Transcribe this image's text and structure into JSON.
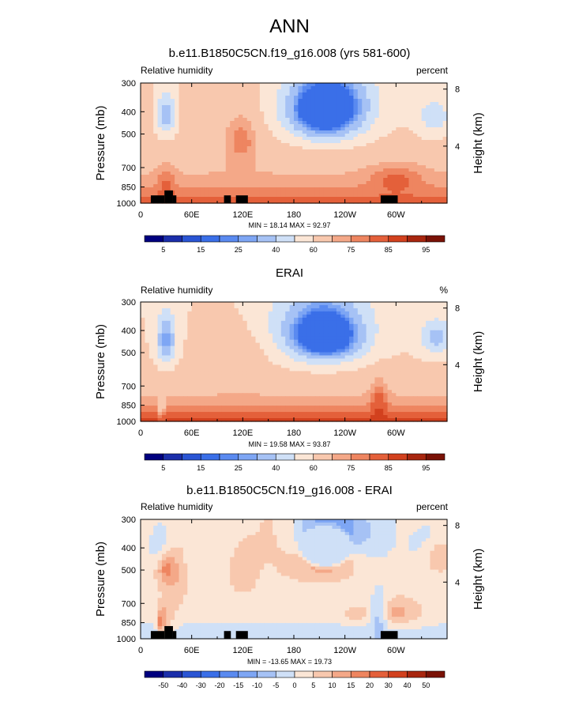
{
  "page_title": "ANN",
  "chart_data": [
    {
      "type": "heatmap",
      "title": "b.e11.B1850C5CN.f19_g16.008 (yrs 581-600)",
      "variable_label": "Relative humidity",
      "units_label": "percent",
      "xlabel": "",
      "ylabel": "Pressure (mb)",
      "y2label": "Height (km)",
      "x_ticks": [
        "0",
        "60E",
        "120E",
        "180",
        "120W",
        "60W"
      ],
      "x_tick_values": [
        0,
        60,
        120,
        180,
        240,
        300
      ],
      "xlim": [
        0,
        360
      ],
      "y_ticks": [
        "300",
        "400",
        "500",
        "700",
        "850",
        "1000"
      ],
      "y_tick_values": [
        300,
        400,
        500,
        700,
        850,
        1000
      ],
      "ylim": [
        1000,
        300
      ],
      "y_scale": "log",
      "y2_ticks": [
        "8",
        "4"
      ],
      "y2_tick_values": [
        8,
        4
      ],
      "min_max_text": "MIN =  18.14   MAX =  92.97",
      "colorbar_labels": [
        "5",
        "15",
        "25",
        "40",
        "60",
        "75",
        "85",
        "95"
      ],
      "levels": [
        5,
        10,
        15,
        20,
        25,
        30,
        40,
        50,
        60,
        70,
        75,
        80,
        85,
        90,
        95
      ],
      "colors": [
        "#00007f",
        "#1b2eaa",
        "#2a55d4",
        "#3a6fe8",
        "#5a8af0",
        "#7ea6f4",
        "#a6c2f5",
        "#cfe0f7",
        "#fbe6d6",
        "#f8c8ae",
        "#f4a888",
        "#ee8560",
        "#e4603a",
        "#d2411e",
        "#a8260f",
        "#7a1206"
      ],
      "terrain_blocks": [
        {
          "lon0": 12,
          "lon1": 28,
          "p_top": 925
        },
        {
          "lon0": 28,
          "lon1": 38,
          "p_top": 880
        },
        {
          "lon0": 38,
          "lon1": 42,
          "p_top": 925
        },
        {
          "lon0": 98,
          "lon1": 106,
          "p_top": 925
        },
        {
          "lon0": 112,
          "lon1": 126,
          "p_top": 925
        },
        {
          "lon0": 282,
          "lon1": 302,
          "p_top": 925
        }
      ]
    },
    {
      "type": "heatmap",
      "title": "ERAI",
      "variable_label": "Relative humidity",
      "units_label": "%",
      "xlabel": "",
      "ylabel": "Pressure (mb)",
      "y2label": "Height (km)",
      "x_ticks": [
        "0",
        "60E",
        "120E",
        "180",
        "120W",
        "60W"
      ],
      "x_tick_values": [
        0,
        60,
        120,
        180,
        240,
        300
      ],
      "xlim": [
        0,
        360
      ],
      "y_ticks": [
        "300",
        "400",
        "500",
        "700",
        "850",
        "1000"
      ],
      "y_tick_values": [
        300,
        400,
        500,
        700,
        850,
        1000
      ],
      "ylim": [
        1000,
        300
      ],
      "y_scale": "log",
      "y2_ticks": [
        "8",
        "4"
      ],
      "y2_tick_values": [
        8,
        4
      ],
      "min_max_text": "MIN =  19.58   MAX =  93.87",
      "colorbar_labels": [
        "5",
        "15",
        "25",
        "40",
        "60",
        "75",
        "85",
        "95"
      ],
      "levels": [
        5,
        10,
        15,
        20,
        25,
        30,
        40,
        50,
        60,
        70,
        75,
        80,
        85,
        90,
        95
      ],
      "colors": [
        "#00007f",
        "#1b2eaa",
        "#2a55d4",
        "#3a6fe8",
        "#5a8af0",
        "#7ea6f4",
        "#a6c2f5",
        "#cfe0f7",
        "#fbe6d6",
        "#f8c8ae",
        "#f4a888",
        "#ee8560",
        "#e4603a",
        "#d2411e",
        "#a8260f",
        "#7a1206"
      ],
      "terrain_blocks": []
    },
    {
      "type": "heatmap",
      "title": "b.e11.B1850C5CN.f19_g16.008 - ERAI",
      "variable_label": "Relative humidity",
      "units_label": "percent",
      "xlabel": "",
      "ylabel": "Pressure (mb)",
      "y2label": "Height (km)",
      "x_ticks": [
        "0",
        "60E",
        "120E",
        "180",
        "120W",
        "60W"
      ],
      "x_tick_values": [
        0,
        60,
        120,
        180,
        240,
        300
      ],
      "xlim": [
        0,
        360
      ],
      "y_ticks": [
        "300",
        "400",
        "500",
        "700",
        "850",
        "1000"
      ],
      "y_tick_values": [
        300,
        400,
        500,
        700,
        850,
        1000
      ],
      "ylim": [
        1000,
        300
      ],
      "y_scale": "log",
      "y2_ticks": [
        "8",
        "4"
      ],
      "y2_tick_values": [
        8,
        4
      ],
      "min_max_text": "MIN = -13.65   MAX =  19.73",
      "colorbar_labels": [
        "-50",
        "-40",
        "-30",
        "-20",
        "-15",
        "-10",
        "-5",
        "0",
        "5",
        "10",
        "15",
        "20",
        "30",
        "40",
        "50"
      ],
      "levels": [
        -50,
        -40,
        -30,
        -20,
        -15,
        -10,
        -5,
        0,
        5,
        10,
        15,
        20,
        30,
        40,
        50
      ],
      "colors": [
        "#00007f",
        "#1b2eaa",
        "#2a55d4",
        "#3a6fe8",
        "#5a8af0",
        "#7ea6f4",
        "#a6c2f5",
        "#cfe0f7",
        "#fbe6d6",
        "#f8c8ae",
        "#f4a888",
        "#ee8560",
        "#e4603a",
        "#d2411e",
        "#a8260f",
        "#7a1206"
      ],
      "terrain_blocks": [
        {
          "lon0": 12,
          "lon1": 28,
          "p_top": 925
        },
        {
          "lon0": 28,
          "lon1": 38,
          "p_top": 880
        },
        {
          "lon0": 38,
          "lon1": 42,
          "p_top": 925
        },
        {
          "lon0": 98,
          "lon1": 106,
          "p_top": 925
        },
        {
          "lon0": 112,
          "lon1": 126,
          "p_top": 925
        },
        {
          "lon0": 282,
          "lon1": 302,
          "p_top": 925
        }
      ]
    }
  ]
}
